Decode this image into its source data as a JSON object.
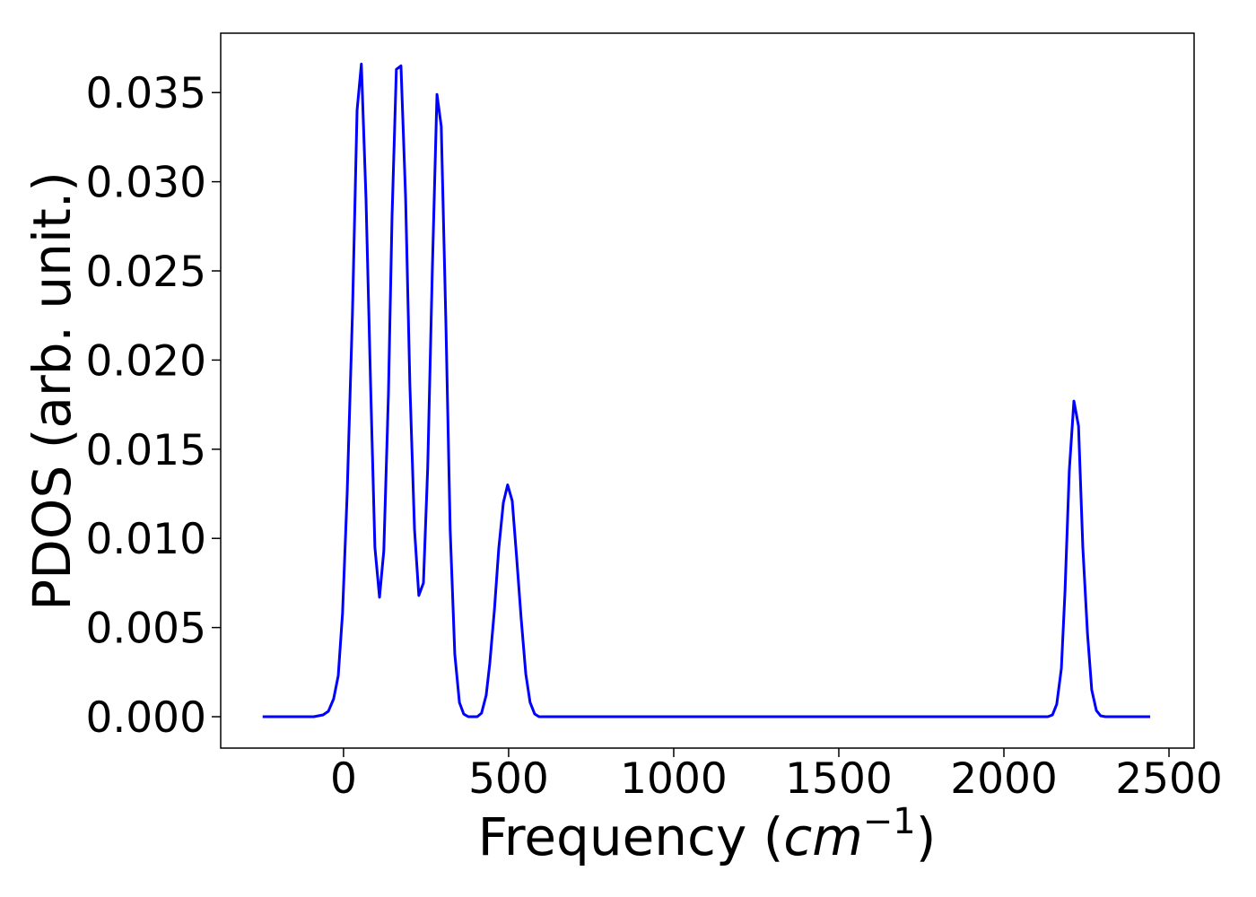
{
  "chart_data": {
    "type": "line",
    "ylabel": "PDOS (arb. unit.)",
    "xlabel": {
      "text": "Frequency (",
      "unit": "cm",
      "exponent": "−1",
      "close": ")"
    },
    "x": [
      -245,
      -90,
      -62,
      -46,
      -30,
      -16,
      -3,
      11,
      27,
      41,
      54,
      68,
      82,
      95,
      109,
      122,
      136,
      147,
      160,
      174,
      188,
      201,
      215,
      228,
      242,
      255,
      269,
      283,
      296,
      310,
      323,
      337,
      351,
      364,
      378,
      405,
      418,
      432,
      443,
      457,
      470,
      484,
      497,
      511,
      524,
      538,
      552,
      565,
      579,
      592,
      2133,
      2147,
      2160,
      2174,
      2185,
      2198,
      2212,
      2226,
      2239,
      2253,
      2266,
      2280,
      2293,
      2307,
      2443
    ],
    "series": [
      {
        "name": "PDOS",
        "color": "#0000ff",
        "values": [
          0,
          0,
          0.0001,
          0.0003,
          0.001,
          0.0023,
          0.0058,
          0.0125,
          0.0226,
          0.034,
          0.0366,
          0.0291,
          0.0186,
          0.0095,
          0.0067,
          0.0093,
          0.0181,
          0.0281,
          0.0363,
          0.0365,
          0.0291,
          0.0186,
          0.0105,
          0.0068,
          0.0075,
          0.014,
          0.0251,
          0.0349,
          0.0331,
          0.0221,
          0.0105,
          0.0035,
          0.0008,
          0.00015,
          0,
          0,
          0.0002,
          0.0012,
          0.003,
          0.006,
          0.0094,
          0.012,
          0.013,
          0.0121,
          0.009,
          0.0055,
          0.0024,
          0.0008,
          0.00015,
          0,
          0,
          0.0001,
          0.0007,
          0.0027,
          0.007,
          0.0138,
          0.0177,
          0.0163,
          0.0095,
          0.0047,
          0.0015,
          0.00035,
          5e-05,
          0,
          0
        ]
      }
    ],
    "xlim": [
      -372,
      2576
    ],
    "ylim": [
      -0.00176,
      0.03833
    ],
    "xticks": [
      0,
      500,
      1000,
      1500,
      2000,
      2500
    ],
    "yticks": [
      {
        "value": 0,
        "label": "0.000"
      },
      {
        "value": 0.005,
        "label": "0.005"
      },
      {
        "value": 0.01,
        "label": "0.010"
      },
      {
        "value": 0.015,
        "label": "0.015"
      },
      {
        "value": 0.02,
        "label": "0.020"
      },
      {
        "value": 0.025,
        "label": "0.025"
      },
      {
        "value": 0.03,
        "label": "0.030"
      },
      {
        "value": 0.035,
        "label": "0.035"
      }
    ],
    "grid": false
  }
}
